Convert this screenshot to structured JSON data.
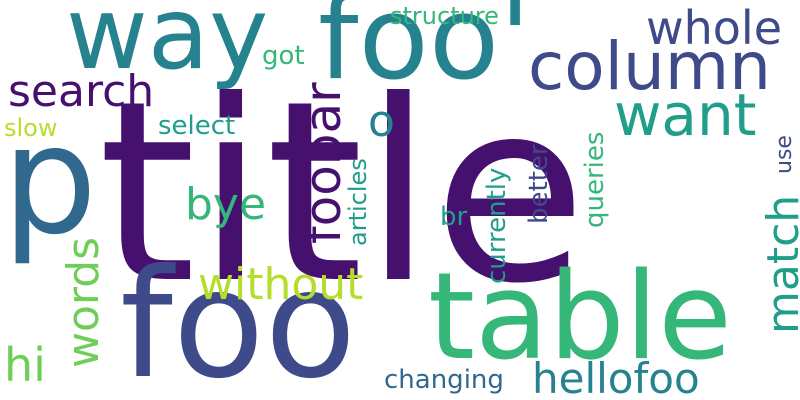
{
  "colors": {
    "background": "#ffffff",
    "deep_purple": "#46106e",
    "indigo": "#3e4a89",
    "blue": "#31688e",
    "teal": "#26828e",
    "sea_green": "#1f9e89",
    "green": "#35b779",
    "light_green": "#6ece58",
    "lime": "#b5de2b"
  },
  "words": {
    "title": "title",
    "foo": "foo",
    "foo_apostrophe": "foo'",
    "table": "table",
    "way": "way",
    "p": "p",
    "column": "column",
    "want": "want",
    "whole": "whole",
    "search": "search",
    "hellofoo": "hellofoo",
    "foobar": "foobar",
    "match": "match",
    "words": "words",
    "without": "without",
    "bye": "bye",
    "o": "o",
    "hi": "hi",
    "changing": "changing",
    "structure": "structure",
    "got": "got",
    "select": "select",
    "slow": "slow",
    "articles": "articles",
    "currently": "currently",
    "better": "better",
    "queries": "queries",
    "br": "br",
    "use": "use"
  }
}
